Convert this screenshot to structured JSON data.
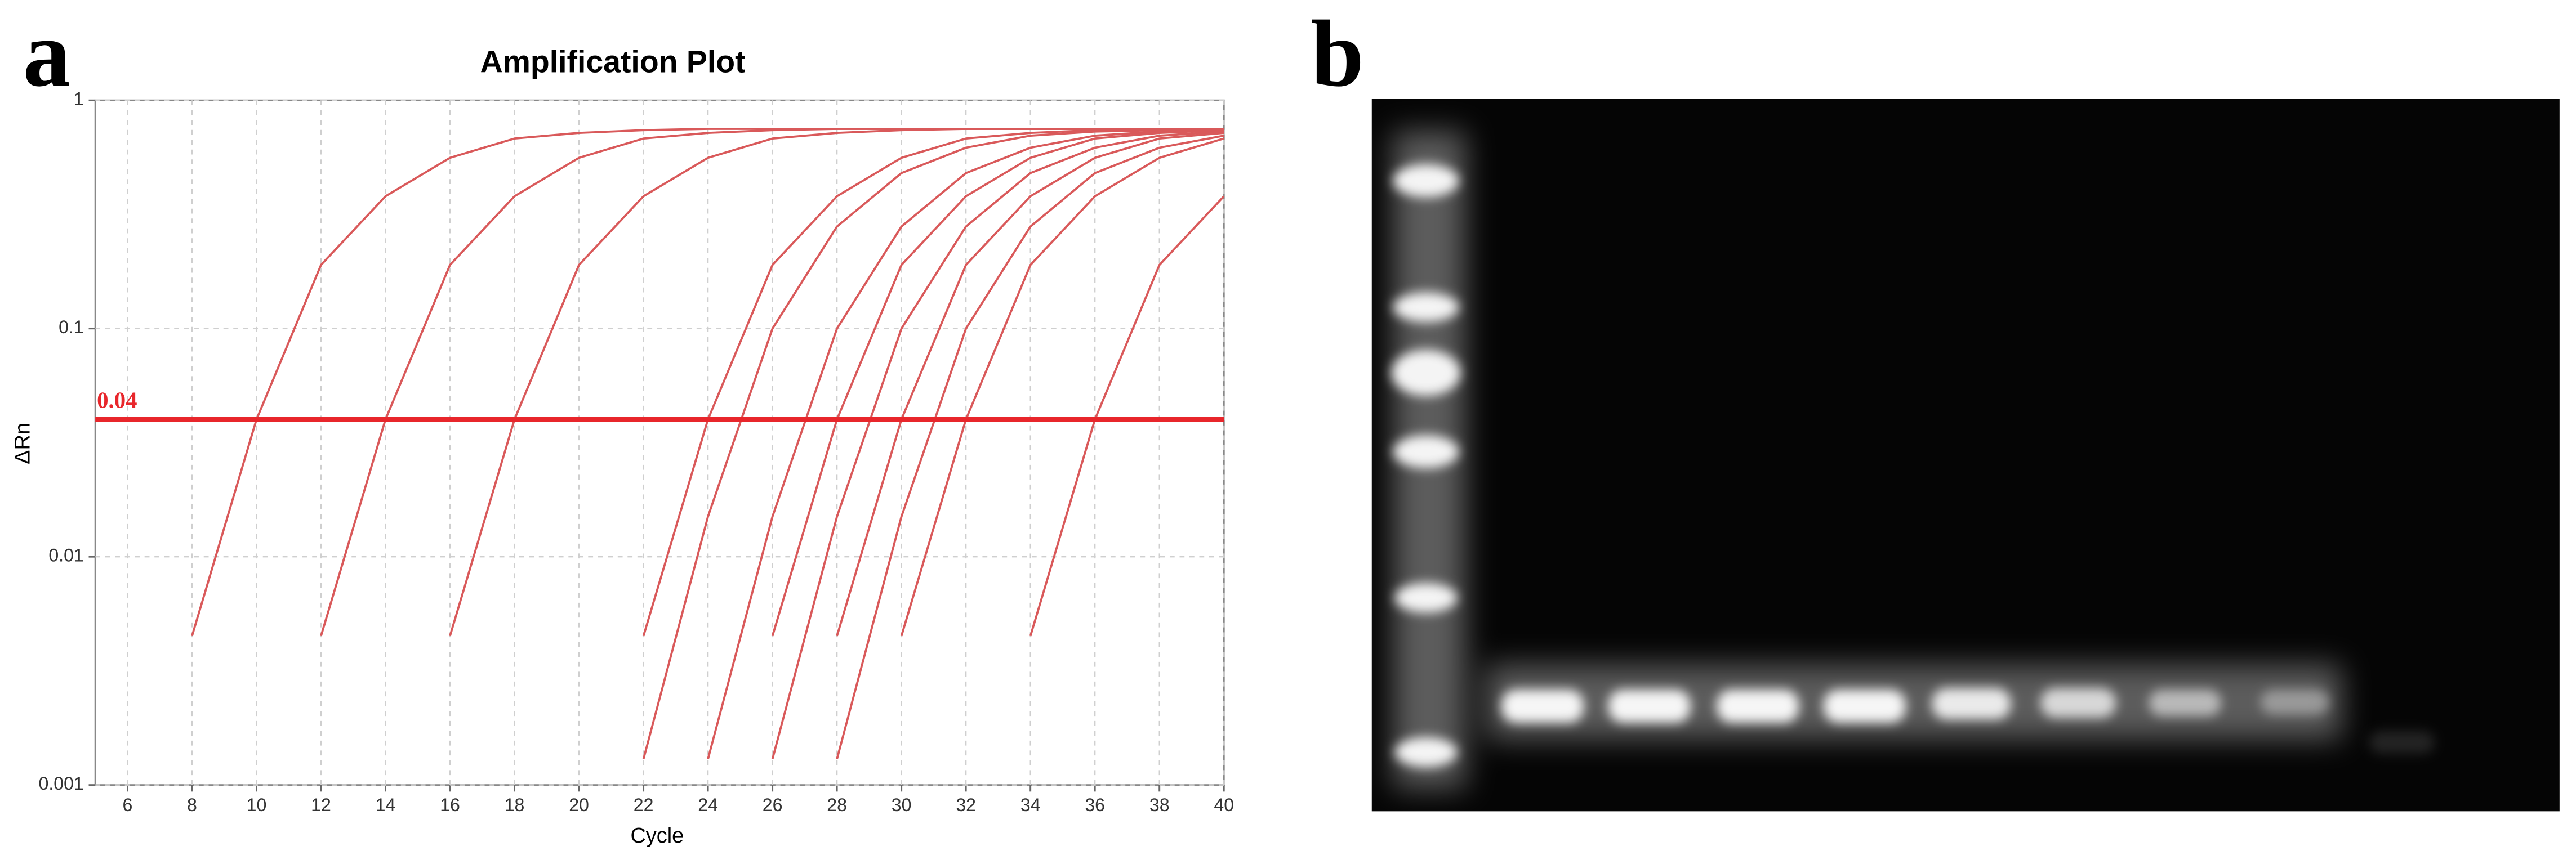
{
  "panel_labels": [
    "a",
    "b"
  ],
  "chart_data": {
    "type": "line",
    "title": "Amplification Plot",
    "xlabel": "Cycle",
    "ylabel": "ΔRn",
    "ylog": true,
    "grid": true,
    "threshold": 0.04,
    "threshold_color": "#e8262b",
    "xlim": [
      5,
      40
    ],
    "ylim": [
      0.001,
      1
    ],
    "xticks": [
      6,
      8,
      10,
      12,
      14,
      16,
      18,
      20,
      22,
      24,
      26,
      28,
      30,
      32,
      34,
      36,
      38,
      40
    ],
    "yticks": [
      0.001,
      0.01,
      0.1,
      1
    ],
    "x": [
      6,
      8,
      10,
      12,
      14,
      16,
      18,
      20,
      22,
      24,
      26,
      28,
      30,
      32,
      34,
      36,
      38,
      40
    ],
    "series": [
      {
        "color": "#d9595a",
        "values": [
          null,
          0.0045,
          0.04,
          0.19,
          0.38,
          0.56,
          0.68,
          0.72,
          0.74,
          0.75,
          0.75,
          0.75,
          0.75,
          0.75,
          0.75,
          0.75,
          0.75,
          0.75
        ]
      },
      {
        "color": "#d9595a",
        "values": [
          null,
          null,
          null,
          0.0045,
          0.04,
          0.19,
          0.38,
          0.56,
          0.68,
          0.72,
          0.74,
          0.75,
          0.75,
          0.75,
          0.75,
          0.75,
          0.75,
          0.75
        ]
      },
      {
        "color": "#d9595a",
        "values": [
          null,
          null,
          null,
          null,
          null,
          0.0045,
          0.04,
          0.19,
          0.38,
          0.56,
          0.68,
          0.72,
          0.74,
          0.75,
          0.75,
          0.75,
          0.75,
          0.75
        ]
      },
      {
        "color": "#d9595a",
        "values": [
          null,
          null,
          null,
          null,
          null,
          null,
          null,
          null,
          0.0045,
          0.04,
          0.19,
          0.38,
          0.56,
          0.68,
          0.72,
          0.74,
          0.75,
          0.75
        ]
      },
      {
        "color": "#d9595a",
        "values": [
          null,
          null,
          null,
          null,
          null,
          null,
          null,
          null,
          0.0013,
          0.015,
          0.1,
          0.28,
          0.48,
          0.62,
          0.7,
          0.73,
          0.74,
          0.75
        ]
      },
      {
        "color": "#d9595a",
        "values": [
          null,
          null,
          null,
          null,
          null,
          null,
          null,
          null,
          null,
          0.0013,
          0.015,
          0.1,
          0.28,
          0.48,
          0.62,
          0.7,
          0.73,
          0.74
        ]
      },
      {
        "color": "#d9595a",
        "values": [
          null,
          null,
          null,
          null,
          null,
          null,
          null,
          null,
          null,
          null,
          0.0045,
          0.04,
          0.19,
          0.38,
          0.56,
          0.68,
          0.72,
          0.74
        ]
      },
      {
        "color": "#d9595a",
        "values": [
          null,
          null,
          null,
          null,
          null,
          null,
          null,
          null,
          null,
          null,
          0.0013,
          0.015,
          0.1,
          0.28,
          0.48,
          0.62,
          0.7,
          0.73
        ]
      },
      {
        "color": "#d9595a",
        "values": [
          null,
          null,
          null,
          null,
          null,
          null,
          null,
          null,
          null,
          null,
          null,
          0.0045,
          0.04,
          0.19,
          0.38,
          0.56,
          0.68,
          0.72
        ]
      },
      {
        "color": "#d9595a",
        "values": [
          null,
          null,
          null,
          null,
          null,
          null,
          null,
          null,
          null,
          null,
          null,
          0.0013,
          0.015,
          0.1,
          0.28,
          0.48,
          0.62,
          0.7
        ]
      },
      {
        "color": "#d9595a",
        "values": [
          null,
          null,
          null,
          null,
          null,
          null,
          null,
          null,
          null,
          null,
          null,
          null,
          0.0045,
          0.04,
          0.19,
          0.38,
          0.56,
          0.68
        ]
      },
      {
        "color": "#d9595a",
        "values": [
          null,
          null,
          null,
          null,
          null,
          null,
          null,
          null,
          null,
          null,
          null,
          null,
          null,
          null,
          0.0045,
          0.04,
          0.19,
          0.38
        ]
      }
    ]
  }
}
